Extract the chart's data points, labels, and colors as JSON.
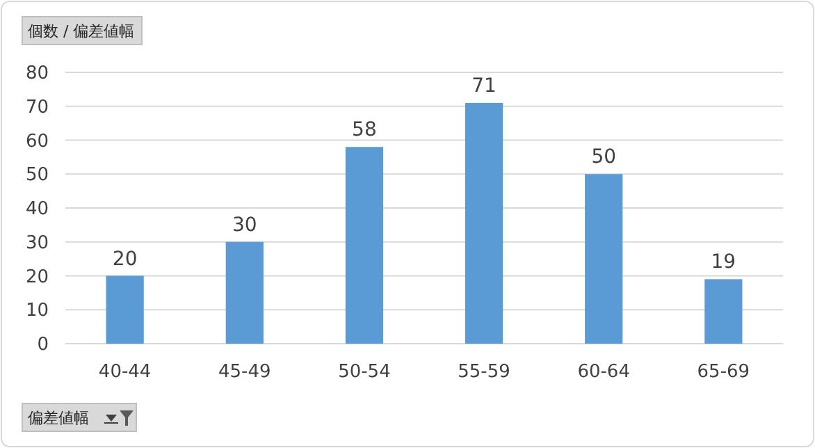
{
  "chart_data": {
    "type": "bar",
    "ylabel": "個数 / 偏差値幅",
    "xlabel": "偏差値幅",
    "categories": [
      "40-44",
      "45-49",
      "50-54",
      "55-59",
      "60-64",
      "65-69"
    ],
    "values": [
      20,
      30,
      58,
      71,
      50,
      19
    ],
    "color": "#5b9bd5",
    "ylim": [
      0,
      80
    ],
    "yticks": [
      0,
      10,
      20,
      30,
      40,
      50,
      60,
      70,
      80
    ],
    "grid": "y",
    "data_labels": true
  }
}
